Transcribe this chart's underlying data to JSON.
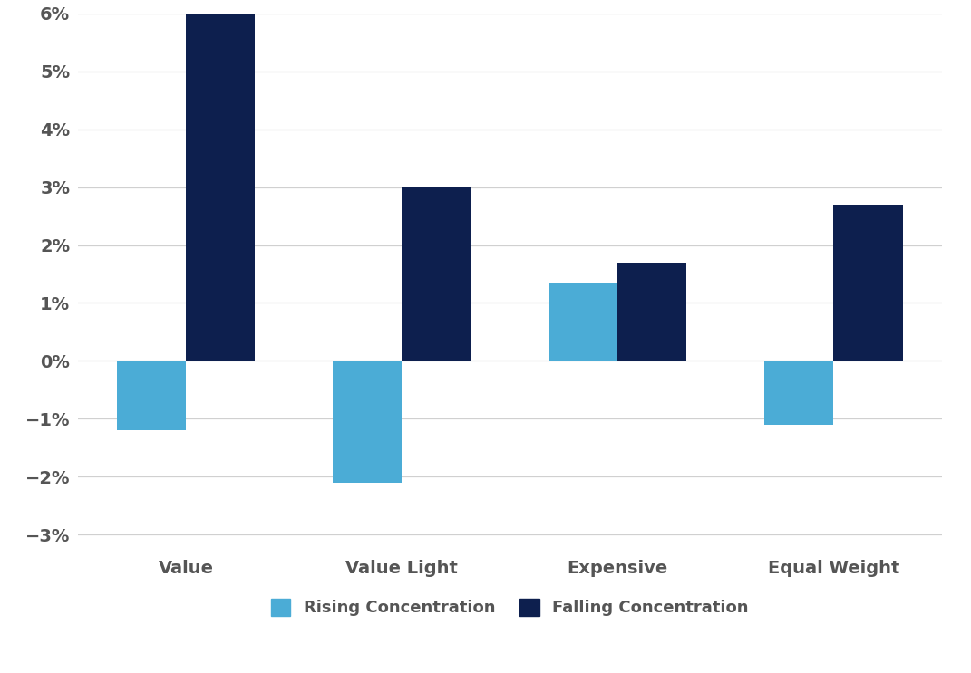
{
  "categories": [
    "Value",
    "Value Light",
    "Expensive",
    "Equal Weight"
  ],
  "rising_values": [
    -0.012,
    -0.021,
    0.0135,
    -0.011
  ],
  "falling_values": [
    0.06,
    0.03,
    0.017,
    0.027
  ],
  "rising_color": "#4BACD6",
  "falling_color": "#0D1F4E",
  "ylim": [
    -0.033,
    0.06
  ],
  "yticks": [
    -0.03,
    -0.02,
    -0.01,
    0.0,
    0.01,
    0.02,
    0.03,
    0.04,
    0.05,
    0.06
  ],
  "ytick_labels": [
    "−3%",
    "−2%",
    "−1%",
    "0%",
    "1%",
    "2%",
    "3%",
    "4%",
    "5%",
    "6%"
  ],
  "rising_label": "Rising Concentration",
  "falling_label": "Falling Concentration",
  "background_color": "#FFFFFF",
  "grid_color": "#D0D0D0",
  "bar_width": 0.32,
  "tick_fontsize": 14,
  "label_fontsize": 14,
  "legend_fontsize": 13
}
